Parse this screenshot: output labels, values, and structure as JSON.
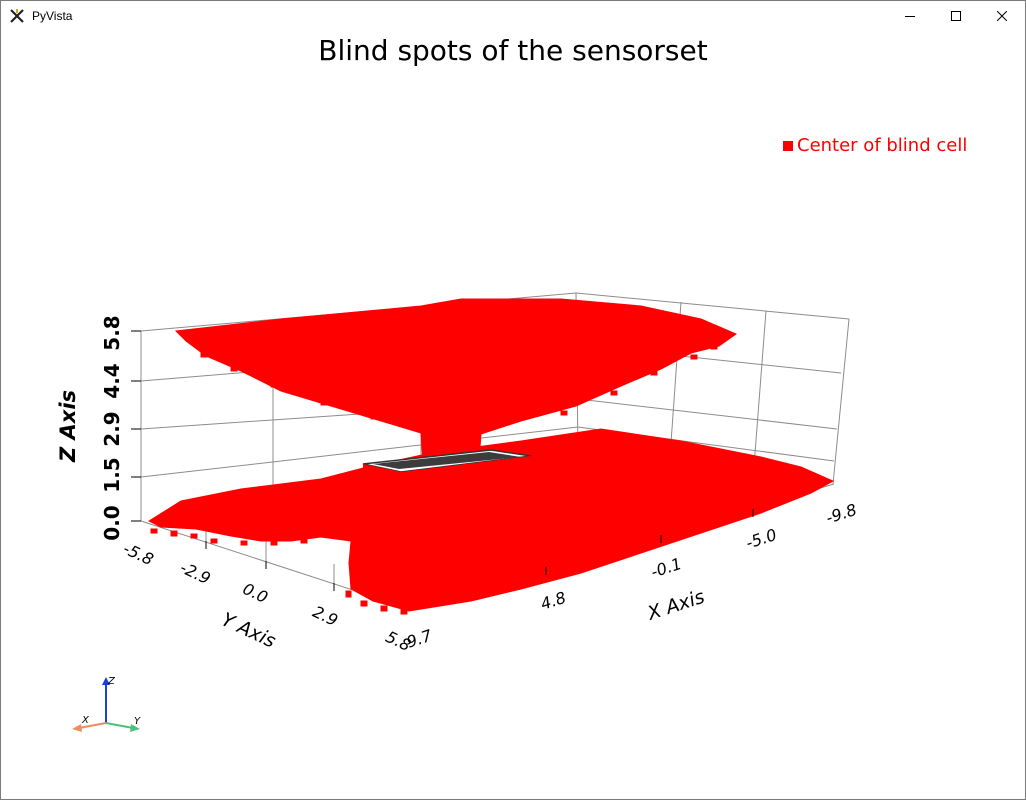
{
  "window": {
    "title": "PyVista"
  },
  "plot": {
    "title": "Blind spots of the sensorset",
    "legend": [
      {
        "label": "Center of blind cell",
        "color": "#ff0000"
      }
    ],
    "x_axis": {
      "label": "X Axis",
      "ticks": [
        "9.7",
        "4.8",
        "-0.1",
        "-5.0",
        "-9.8"
      ]
    },
    "y_axis": {
      "label": "Y Axis",
      "ticks": [
        "-5.8",
        "-2.9",
        "0.0",
        "2.9",
        "5.8"
      ]
    },
    "z_axis": {
      "label": "Z Axis",
      "ticks": [
        "0.0",
        "1.5",
        "2.9",
        "4.4",
        "5.8"
      ]
    },
    "point_color": "#ff0000",
    "sensor_color": "#3c3c3c"
  },
  "orientation_widget": {
    "x_label": "X",
    "y_label": "Y",
    "z_label": "Z",
    "x_color": "#f08a60",
    "y_color": "#4cc27a",
    "z_color": "#1a3fd6"
  }
}
